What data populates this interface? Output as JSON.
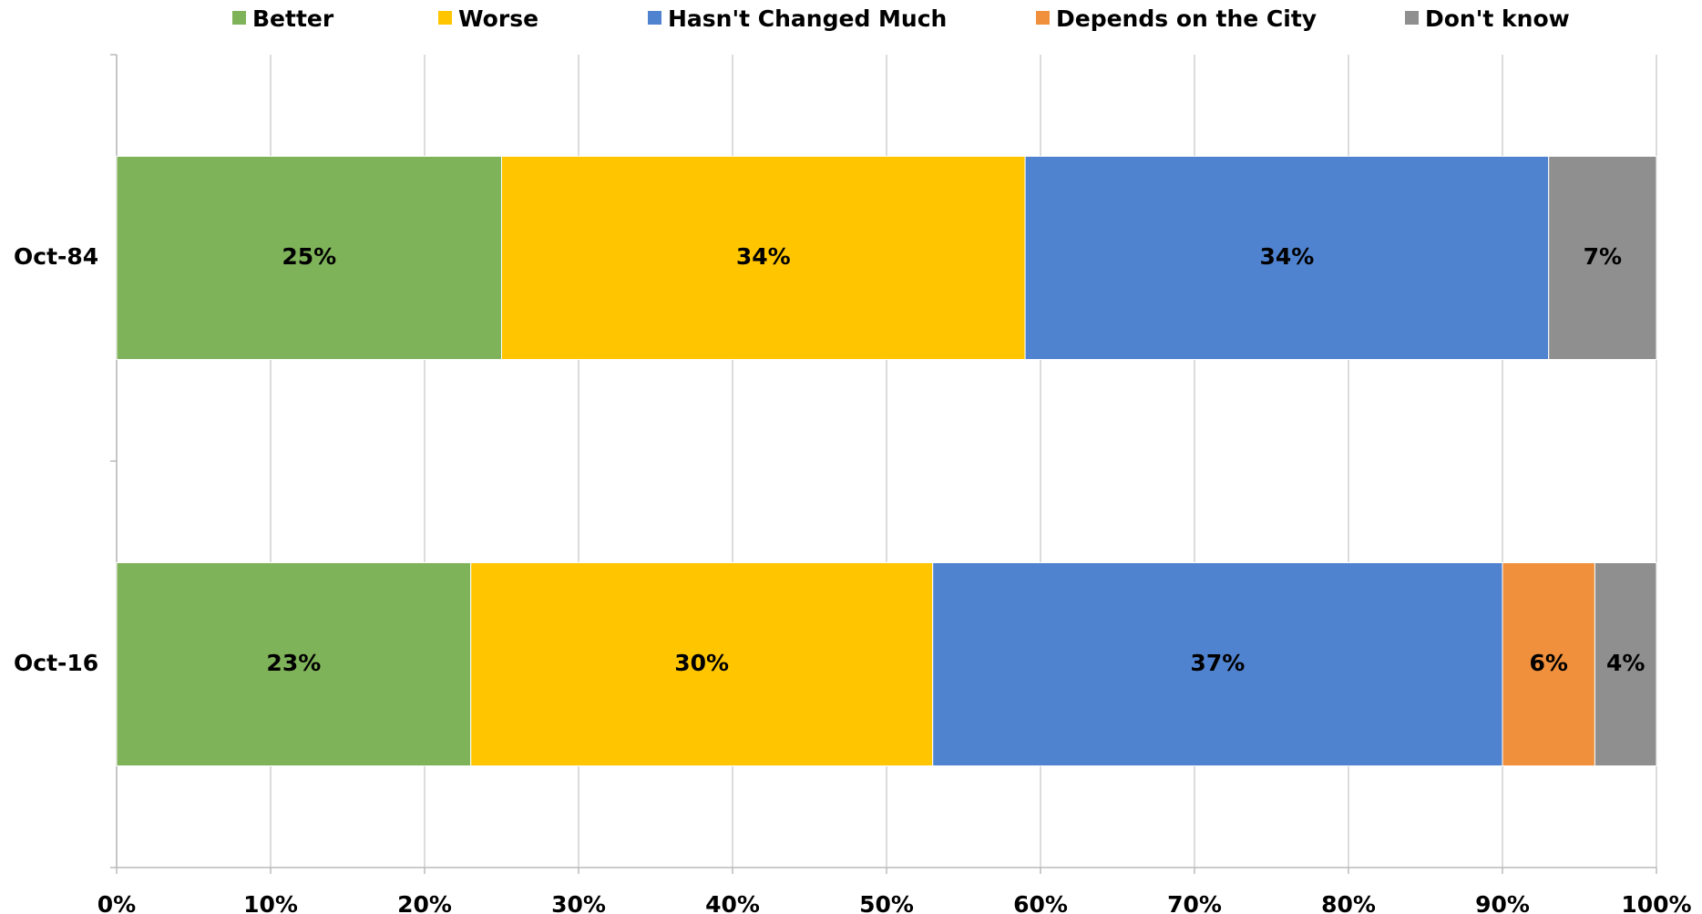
{
  "chart_data": {
    "type": "stacked_barh",
    "categories": [
      "Oct-84",
      "Oct-16"
    ],
    "series": [
      {
        "name": "Better",
        "color": "#7fb35a",
        "values": [
          25,
          23
        ],
        "value_labels": [
          "25%",
          "23%"
        ]
      },
      {
        "name": "Worse",
        "color": "#ffc600",
        "values": [
          34,
          30
        ],
        "value_labels": [
          "34%",
          "30%"
        ]
      },
      {
        "name": "Hasn't Changed Much",
        "color": "#5083cf",
        "values": [
          34,
          37
        ],
        "value_labels": [
          "34%",
          "37%"
        ]
      },
      {
        "name": "Depends on the City",
        "color": "#f0903c",
        "values": [
          null,
          6
        ],
        "value_labels": [
          null,
          "6%"
        ]
      },
      {
        "name": "Don't know",
        "color": "#8f8f8f",
        "values": [
          7,
          4
        ],
        "value_labels": [
          "7%",
          "4%"
        ]
      }
    ],
    "xlim": [
      0,
      100
    ],
    "xticks": [
      {
        "value": 0,
        "label": "0%"
      },
      {
        "value": 10,
        "label": "10%"
      },
      {
        "value": 20,
        "label": "20%"
      },
      {
        "value": 30,
        "label": "30%"
      },
      {
        "value": 40,
        "label": "40%"
      },
      {
        "value": 50,
        "label": "50%"
      },
      {
        "value": 60,
        "label": "60%"
      },
      {
        "value": 70,
        "label": "70%"
      },
      {
        "value": 80,
        "label": "80%"
      },
      {
        "value": 90,
        "label": "90%"
      },
      {
        "value": 100,
        "label": "100%"
      }
    ],
    "grid": true,
    "legend": "top"
  }
}
